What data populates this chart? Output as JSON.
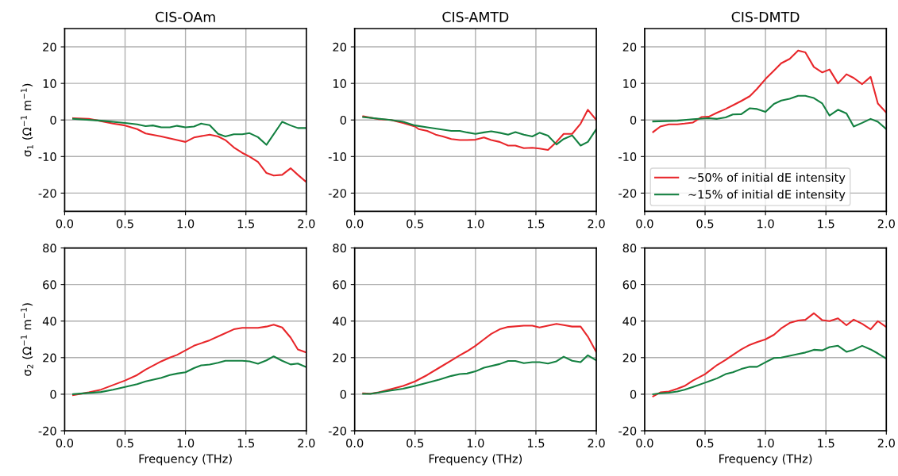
{
  "chart_data": [
    {
      "type": "line",
      "title": "CIS-OAm",
      "ylabel": "σ$_{1}$ (Ω$^{−1}$ m$^{−1}$)",
      "xlim": [
        0,
        2
      ],
      "xticks": [
        {
          "value": 0,
          "label": "0.0"
        },
        {
          "value": 0.5,
          "label": "0.5"
        },
        {
          "value": 1,
          "label": "1.0"
        },
        {
          "value": 1.5,
          "label": "1.5"
        },
        {
          "value": 2,
          "label": "2.0"
        }
      ],
      "ylim": [
        -25,
        25
      ],
      "yticks": [
        -20,
        -10,
        0,
        10,
        20
      ],
      "grid": true,
      "legend": false,
      "series": [
        {
          "color": "#e8262a",
          "x": [
            0.07,
            0.2,
            0.3,
            0.4,
            0.5,
            0.6,
            0.67,
            0.8,
            0.93,
            1.0,
            1.07,
            1.2,
            1.27,
            1.33,
            1.4,
            1.47,
            1.53,
            1.6,
            1.67,
            1.73,
            1.8,
            1.87,
            1.93,
            2.0
          ],
          "values": [
            0.5,
            0.3,
            -0.3,
            -1,
            -1.5,
            -2.5,
            -3.7,
            -4.5,
            -5.5,
            -6,
            -4.8,
            -4,
            -4.5,
            -5.5,
            -7.5,
            -9,
            -10,
            -11.5,
            -14.5,
            -15.2,
            -15,
            -13.2,
            -15,
            -17
          ]
        },
        {
          "color": "#138040",
          "x": [
            0.07,
            0.3,
            0.5,
            0.6,
            0.67,
            0.73,
            0.8,
            0.87,
            0.93,
            1.0,
            1.07,
            1.13,
            1.2,
            1.27,
            1.33,
            1.4,
            1.47,
            1.53,
            1.6,
            1.67,
            1.8,
            1.87,
            1.93,
            2.0
          ],
          "values": [
            0.3,
            -0.2,
            -0.8,
            -1.2,
            -1.7,
            -1.5,
            -2,
            -2,
            -1.6,
            -2,
            -1.8,
            -1,
            -1.4,
            -3.8,
            -4.5,
            -3.9,
            -3.9,
            -3.6,
            -4.7,
            -6.8,
            -0.5,
            -1.5,
            -2.2,
            -2.2
          ]
        }
      ]
    },
    {
      "type": "line",
      "title": "CIS-AMTD",
      "xlim": [
        0,
        2
      ],
      "xticks": [
        {
          "value": 0,
          "label": "0.0"
        },
        {
          "value": 0.5,
          "label": "0.5"
        },
        {
          "value": 1,
          "label": "1.0"
        },
        {
          "value": 1.5,
          "label": "1.5"
        },
        {
          "value": 2,
          "label": "2.0"
        }
      ],
      "ylim": [
        -25,
        25
      ],
      "yticks": [
        -20,
        -10,
        0,
        10,
        20
      ],
      "grid": true,
      "legend": false,
      "series": [
        {
          "color": "#e8262a",
          "x": [
            0.07,
            0.2,
            0.3,
            0.4,
            0.5,
            0.53,
            0.6,
            0.67,
            0.73,
            0.8,
            0.87,
            0.93,
            1.0,
            1.07,
            1.13,
            1.2,
            1.27,
            1.33,
            1.4,
            1.47,
            1.53,
            1.6,
            1.67,
            1.73,
            1.8,
            1.87,
            1.93,
            2.0
          ],
          "values": [
            1,
            0.2,
            0,
            -0.8,
            -1.8,
            -2.5,
            -3,
            -4,
            -4.5,
            -5.2,
            -5.5,
            -5.5,
            -5.4,
            -4.8,
            -5.5,
            -6,
            -7,
            -7,
            -7.7,
            -7.6,
            -7.8,
            -8.2,
            -6,
            -3.8,
            -3.8,
            -1,
            2.8,
            0
          ]
        },
        {
          "color": "#138040",
          "x": [
            0.07,
            0.3,
            0.4,
            0.5,
            0.6,
            0.7,
            0.8,
            0.87,
            0.93,
            1.0,
            1.07,
            1.13,
            1.2,
            1.27,
            1.33,
            1.4,
            1.47,
            1.53,
            1.6,
            1.67,
            1.73,
            1.8,
            1.87,
            1.93,
            2.0
          ],
          "values": [
            0.8,
            0,
            -0.5,
            -1.5,
            -2,
            -2.5,
            -3,
            -3,
            -3.4,
            -3.8,
            -3.4,
            -3.1,
            -3.5,
            -4,
            -3.3,
            -4,
            -4.5,
            -3.5,
            -4.3,
            -6.7,
            -5.2,
            -4.2,
            -7,
            -6,
            -2.5
          ]
        }
      ]
    },
    {
      "type": "line",
      "title": "CIS-DMTD",
      "xlim": [
        0,
        2
      ],
      "xticks": [
        {
          "value": 0,
          "label": "0.0"
        },
        {
          "value": 0.5,
          "label": "0.5"
        },
        {
          "value": 1,
          "label": "1.0"
        },
        {
          "value": 1.5,
          "label": "1.5"
        },
        {
          "value": 2,
          "label": "2.0"
        }
      ],
      "ylim": [
        -25,
        25
      ],
      "yticks": [
        -20,
        -10,
        0,
        10,
        20
      ],
      "grid": true,
      "legend": "lower left",
      "series": [
        {
          "name": "~50% of initial dE intensity",
          "color": "#e8262a",
          "x": [
            0.07,
            0.13,
            0.2,
            0.27,
            0.33,
            0.4,
            0.47,
            0.53,
            0.6,
            0.67,
            0.73,
            0.8,
            0.87,
            0.93,
            1.0,
            1.07,
            1.13,
            1.2,
            1.27,
            1.33,
            1.4,
            1.47,
            1.53,
            1.6,
            1.67,
            1.73,
            1.8,
            1.87,
            1.93,
            2.0
          ],
          "values": [
            -3.3,
            -1.8,
            -1.2,
            -1.2,
            -1,
            -0.7,
            0.8,
            0.9,
            2,
            3,
            4,
            5.2,
            6.5,
            8.5,
            11.2,
            13.5,
            15.5,
            16.7,
            19,
            18.5,
            14.5,
            13,
            13.8,
            10,
            12.5,
            11.5,
            9.8,
            11.8,
            4.5,
            2
          ]
        },
        {
          "name": "~15% of initial dE intensity",
          "color": "#138040",
          "x": [
            0.07,
            0.27,
            0.4,
            0.53,
            0.6,
            0.67,
            0.73,
            0.8,
            0.87,
            0.93,
            1.0,
            1.07,
            1.13,
            1.2,
            1.27,
            1.33,
            1.4,
            1.47,
            1.53,
            1.6,
            1.67,
            1.73,
            1.8,
            1.87,
            1.93,
            2.0
          ],
          "values": [
            -0.4,
            -0.2,
            0.2,
            0.5,
            0.3,
            0.7,
            1.5,
            1.6,
            3.2,
            3,
            2.2,
            4.4,
            5.3,
            5.8,
            6.6,
            6.6,
            6,
            4.5,
            1.2,
            2.8,
            1.8,
            -1.8,
            -0.8,
            0.3,
            -0.5,
            -2.5
          ]
        }
      ]
    },
    {
      "type": "line",
      "ylabel": "σ$_{2}$ (Ω$^{−1}$ m$^{−1}$)",
      "xlabel": "Frequency (THz)",
      "xlim": [
        0,
        2
      ],
      "xticks": [
        {
          "value": 0,
          "label": "0.0"
        },
        {
          "value": 0.5,
          "label": "0.5"
        },
        {
          "value": 1,
          "label": "1.0"
        },
        {
          "value": 1.5,
          "label": "1.5"
        },
        {
          "value": 2,
          "label": "2.0"
        }
      ],
      "ylim": [
        -20,
        80
      ],
      "yticks": [
        -20,
        0,
        20,
        40,
        60,
        80
      ],
      "grid": true,
      "legend": false,
      "series": [
        {
          "color": "#e8262a",
          "x": [
            0.07,
            0.2,
            0.3,
            0.4,
            0.5,
            0.6,
            0.67,
            0.8,
            0.87,
            0.93,
            1.0,
            1.07,
            1.2,
            1.3,
            1.4,
            1.47,
            1.6,
            1.67,
            1.73,
            1.8,
            1.87,
            1.93,
            2.0
          ],
          "values": [
            -0.5,
            1,
            2.5,
            5,
            7.5,
            10.5,
            13.5,
            18,
            20,
            21.5,
            24,
            26.5,
            29.5,
            32.5,
            35.5,
            36.3,
            36.3,
            37,
            38,
            36.5,
            31,
            24.5,
            22.8
          ]
        },
        {
          "color": "#138040",
          "x": [
            0.07,
            0.3,
            0.4,
            0.5,
            0.6,
            0.67,
            0.8,
            0.87,
            0.93,
            1.0,
            1.07,
            1.13,
            1.2,
            1.27,
            1.33,
            1.47,
            1.53,
            1.6,
            1.67,
            1.73,
            1.8,
            1.87,
            1.93,
            2.0
          ],
          "values": [
            0,
            1.2,
            2.5,
            4,
            5.5,
            7,
            9,
            10.5,
            11.3,
            12,
            14.3,
            15.8,
            16.2,
            17.2,
            18.3,
            18.3,
            18,
            16.7,
            18.5,
            20.7,
            18.3,
            16.3,
            16.8,
            14.8
          ]
        }
      ]
    },
    {
      "type": "line",
      "xlabel": "Frequency (THz)",
      "xlim": [
        0,
        2
      ],
      "xticks": [
        {
          "value": 0,
          "label": "0.0"
        },
        {
          "value": 0.5,
          "label": "0.5"
        },
        {
          "value": 1,
          "label": "1.0"
        },
        {
          "value": 1.5,
          "label": "1.5"
        },
        {
          "value": 2,
          "label": "2.0"
        }
      ],
      "ylim": [
        -20,
        80
      ],
      "yticks": [
        -20,
        0,
        20,
        40,
        60,
        80
      ],
      "grid": true,
      "legend": false,
      "series": [
        {
          "color": "#e8262a",
          "x": [
            0.07,
            0.13,
            0.2,
            0.3,
            0.4,
            0.5,
            0.6,
            0.7,
            0.8,
            0.87,
            0.93,
            1.0,
            1.07,
            1.13,
            1.2,
            1.27,
            1.4,
            1.47,
            1.53,
            1.6,
            1.67,
            1.73,
            1.8,
            1.87,
            1.93,
            2.0
          ],
          "values": [
            0.5,
            0.3,
            1,
            2.8,
            4.5,
            7,
            10.5,
            14.5,
            18.5,
            21.3,
            23.5,
            26.5,
            30,
            33,
            35.5,
            36.8,
            37.5,
            37.5,
            36.5,
            37.5,
            38.5,
            37.8,
            37,
            37,
            31.5,
            23
          ]
        },
        {
          "color": "#138040",
          "x": [
            0.07,
            0.13,
            0.3,
            0.4,
            0.5,
            0.6,
            0.7,
            0.8,
            0.87,
            0.93,
            1.0,
            1.07,
            1.2,
            1.27,
            1.33,
            1.4,
            1.47,
            1.53,
            1.6,
            1.67,
            1.73,
            1.8,
            1.87,
            1.93,
            2.0
          ],
          "values": [
            0.2,
            0.2,
            2,
            3,
            4.5,
            6.3,
            8,
            10,
            11,
            11.3,
            12.5,
            14.5,
            16.5,
            18.2,
            18.2,
            17,
            17.5,
            17.5,
            16.8,
            18,
            20.5,
            18.3,
            17.5,
            21.3,
            18.5
          ]
        }
      ]
    },
    {
      "type": "line",
      "xlabel": "Frequency (THz)",
      "xlim": [
        0,
        2
      ],
      "xticks": [
        {
          "value": 0,
          "label": "0.0"
        },
        {
          "value": 0.5,
          "label": "0.5"
        },
        {
          "value": 1,
          "label": "1.0"
        },
        {
          "value": 1.5,
          "label": "1.5"
        },
        {
          "value": 2,
          "label": "2.0"
        }
      ],
      "ylim": [
        -20,
        80
      ],
      "yticks": [
        -20,
        0,
        20,
        40,
        60,
        80
      ],
      "grid": true,
      "legend": false,
      "series": [
        {
          "color": "#e8262a",
          "x": [
            0.07,
            0.13,
            0.2,
            0.27,
            0.33,
            0.4,
            0.5,
            0.53,
            0.6,
            0.67,
            0.73,
            0.8,
            0.87,
            0.93,
            1.0,
            1.07,
            1.13,
            1.2,
            1.27,
            1.33,
            1.4,
            1.47,
            1.53,
            1.6,
            1.67,
            1.73,
            1.8,
            1.87,
            1.93,
            2.0
          ],
          "values": [
            -1.2,
            1,
            1.5,
            3,
            4.5,
            7.5,
            11,
            12.5,
            16,
            18.8,
            21.5,
            24.5,
            27,
            28.5,
            30,
            32.5,
            36,
            39,
            40.3,
            40.7,
            44.3,
            40.5,
            40,
            41.5,
            37.7,
            40.8,
            38.5,
            35.5,
            40,
            36.7
          ]
        },
        {
          "color": "#138040",
          "x": [
            0.07,
            0.13,
            0.2,
            0.27,
            0.33,
            0.4,
            0.5,
            0.53,
            0.6,
            0.67,
            0.73,
            0.8,
            0.87,
            0.93,
            1.0,
            1.07,
            1.13,
            1.2,
            1.27,
            1.33,
            1.4,
            1.47,
            1.53,
            1.6,
            1.67,
            1.73,
            1.8,
            1.87,
            1.93,
            2.0
          ],
          "values": [
            0,
            0.5,
            0.8,
            1.5,
            2.5,
            4,
            6.3,
            7,
            8.7,
            11,
            12,
            13.8,
            15,
            15,
            17.5,
            19.8,
            20,
            21,
            22,
            22.8,
            24.3,
            24,
            25.8,
            26.5,
            23.2,
            24.3,
            26.5,
            24.5,
            22.3,
            19.5
          ]
        }
      ]
    }
  ]
}
